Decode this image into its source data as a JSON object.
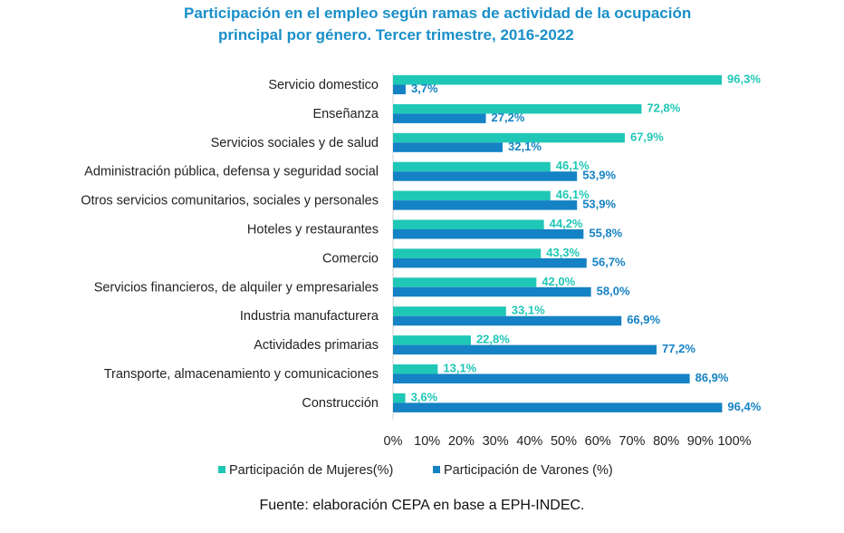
{
  "title_line1": "Participación en el empleo según ramas de actividad de la ocupación",
  "title_line2": "principal por género. Tercer trimestre, 2016-2022",
  "source": "Fuente: elaboración CEPA en base a EPH-INDEC.",
  "colors": {
    "mujeres": "#1fc7b6",
    "varones": "#1482c4",
    "title": "#1a8fc9"
  },
  "chart_data": {
    "type": "bar",
    "orientation": "horizontal",
    "categories": [
      "Servicio domestico",
      "Enseñanza",
      "Servicios sociales y de salud",
      "Administración pública, defensa y seguridad social",
      "Otros servicios comunitarios, sociales y personales",
      "Hoteles y restaurantes",
      "Comercio",
      "Servicios financieros, de alquiler y empresariales",
      "Industria manufacturera",
      "Actividades primarias",
      "Transporte, almacenamiento y comunicaciones",
      "Construcción"
    ],
    "series": [
      {
        "name": "Participación de Mujeres(%)",
        "values": [
          96.3,
          72.8,
          67.9,
          46.1,
          46.1,
          44.2,
          43.3,
          42.0,
          33.1,
          22.8,
          13.1,
          3.6
        ],
        "labels": [
          "96,3%",
          "72,8%",
          "67,9%",
          "46,1%",
          "46,1%",
          "44,2%",
          "43,3%",
          "42,0%",
          "33,1%",
          "22,8%",
          "13,1%",
          "3,6%"
        ]
      },
      {
        "name": "Participación de Varones (%)",
        "values": [
          3.7,
          27.2,
          32.1,
          53.9,
          53.9,
          55.8,
          56.7,
          58.0,
          66.9,
          77.2,
          86.9,
          96.4
        ],
        "labels": [
          "3,7%",
          "27,2%",
          "32,1%",
          "53,9%",
          "53,9%",
          "55,8%",
          "56,7%",
          "58,0%",
          "66,9%",
          "77,2%",
          "86,9%",
          "96,4%"
        ]
      }
    ],
    "xlim": [
      0,
      100
    ],
    "x_ticks": [
      "0%",
      "10%",
      "20%",
      "30%",
      "40%",
      "50%",
      "60%",
      "70%",
      "80%",
      "90%",
      "100%"
    ],
    "grid": false,
    "legend_position": "bottom"
  }
}
